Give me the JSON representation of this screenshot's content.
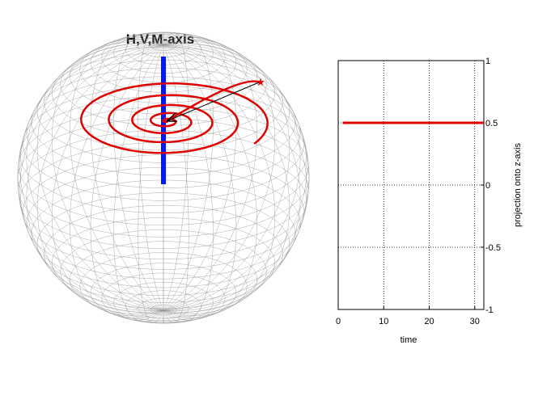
{
  "colors": {
    "trajectory": "#e00000",
    "axis_marker": "#0018ff",
    "grid": "#909090",
    "title": "#0018ff",
    "vector": "#000000"
  },
  "sphere_panel": {
    "title": "H,V,M-axis"
  },
  "chart_data": [
    {
      "type": "line",
      "xlabel": "time",
      "ylabel": "projection onto z-axis",
      "xlim": [
        0,
        32
      ],
      "ylim": [
        -1,
        1
      ],
      "x_ticks": [
        "0",
        "10",
        "20",
        "30"
      ],
      "y_ticks": [
        "1",
        "0.5",
        "0",
        "-0.5",
        "-1"
      ],
      "y_axis_side": "right",
      "grid": true,
      "series": [
        {
          "x": [
            1,
            32
          ],
          "values": [
            0.5,
            0.5
          ]
        }
      ]
    }
  ]
}
